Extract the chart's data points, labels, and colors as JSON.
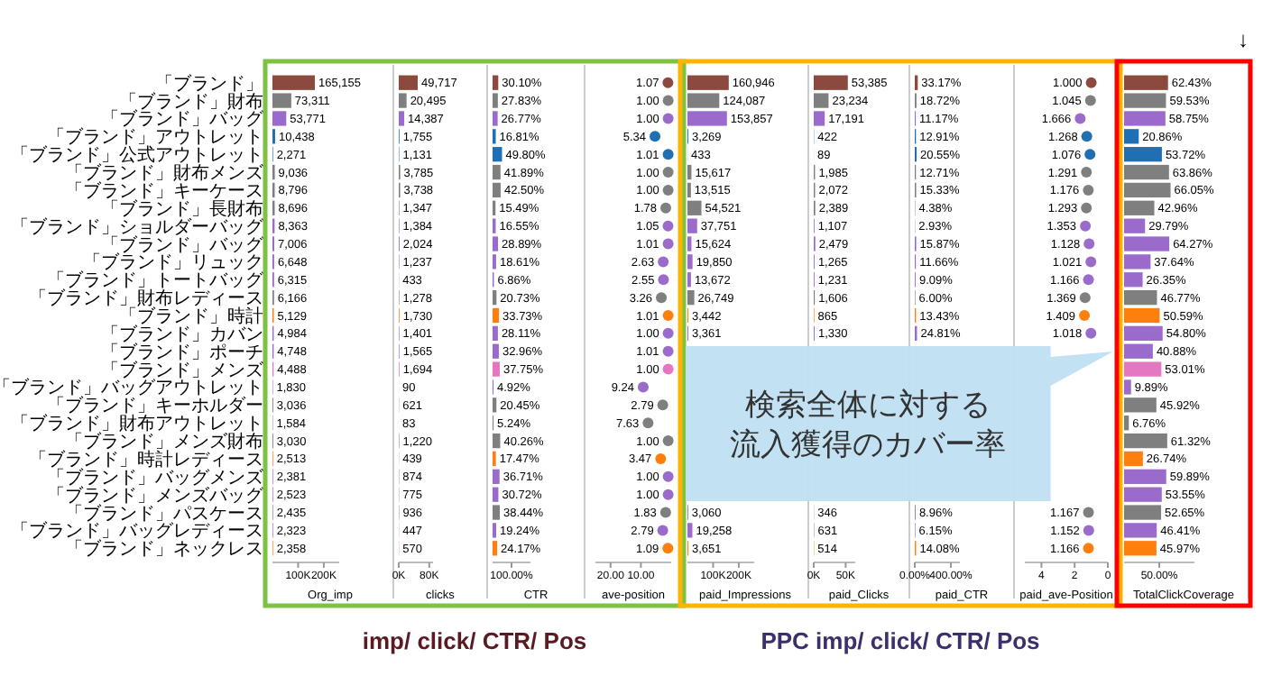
{
  "chart_data": [
    {
      "type": "bar",
      "orientation": "horizontal",
      "xlabel": "Org_imp",
      "categories": [
        "「ブランド」",
        "「ブランド」財布",
        "「ブランド」バッグ",
        "「ブランド」アウトレット",
        "「ブランド」公式アウトレット",
        "「ブランド」財布メンズ",
        "「ブランド」キーケース",
        "「ブランド」長財布",
        "「ブランド」ショルダーバッグ",
        "「ブランド」バッグ",
        "「ブランド」リュック",
        "「ブランド」トートバッグ",
        "「ブランド」財布レディース",
        "「ブランド」時計",
        "「ブランド」カバン",
        "「ブランド」ポーチ",
        "「ブランド」メンズ",
        "「ブランド」バッグアウトレット",
        "「ブランド」キーホルダー",
        "「ブランド」財布アウトレット",
        "「ブランド」メンズ財布",
        "「ブランド」時計レディース",
        "「ブランド」バッグメンズ",
        "「ブランド」メンズバッグ",
        "「ブランド」パスケース",
        "「ブランド」バッグレディース",
        "「ブランド」ネックレス"
      ],
      "values": [
        165155,
        73311,
        53771,
        10438,
        2271,
        9036,
        8796,
        8696,
        8363,
        7006,
        6648,
        6315,
        6166,
        5129,
        4984,
        4748,
        4488,
        1830,
        3036,
        1584,
        3030,
        2513,
        2381,
        2523,
        2435,
        2323,
        2358
      ],
      "value_labels": [
        "165,155",
        "73,311",
        "53,771",
        "10,438",
        "2,271",
        "9,036",
        "8,796",
        "8,696",
        "8,363",
        "7,006",
        "6,648",
        "6,315",
        "6,166",
        "5,129",
        "4,984",
        "4,748",
        "4,488",
        "1,830",
        "3,036",
        "1,584",
        "3,030",
        "2,513",
        "2,381",
        "2,523",
        "2,435",
        "2,323",
        "2,358"
      ],
      "colors": [
        "#8c4a3f",
        "#7f7f7f",
        "#9b6bcc",
        "#1f6fb4",
        "#1f6fb4",
        "#7f7f7f",
        "#7f7f7f",
        "#7f7f7f",
        "#9b6bcc",
        "#9b6bcc",
        "#9b6bcc",
        "#9b6bcc",
        "#7f7f7f",
        "#ff7f0e",
        "#9b6bcc",
        "#9b6bcc",
        "#e377c2",
        "#9b6bcc",
        "#7f7f7f",
        "#7f7f7f",
        "#7f7f7f",
        "#ff7f0e",
        "#9b6bcc",
        "#9b6bcc",
        "#7f7f7f",
        "#9b6bcc",
        "#ff7f0e"
      ],
      "xlim": [
        0,
        260000
      ],
      "xticks": [
        {
          "value": 100000,
          "label": "100K"
        },
        {
          "value": 200000,
          "label": "200K"
        }
      ],
      "annotations": [
        "imp/ click/ CTR/ Pos"
      ]
    },
    {
      "type": "bar",
      "orientation": "horizontal",
      "xlabel": "clicks",
      "tick_labels": "x",
      "values": [
        49717,
        20495,
        14387,
        1755,
        1131,
        3785,
        3738,
        1347,
        1384,
        2024,
        1237,
        433,
        1278,
        1730,
        1401,
        1565,
        1694,
        90,
        621,
        83,
        1220,
        439,
        874,
        775,
        936,
        447,
        570
      ],
      "value_labels": [
        "49,717",
        "20,495",
        "14,387",
        "1,755",
        "1,131",
        "3,785",
        "3,738",
        "1,347",
        "1,384",
        "2,024",
        "1,237",
        "433",
        "1,278",
        "1,730",
        "1,401",
        "1,565",
        "1,694",
        "90",
        "621",
        "83",
        "1,220",
        "439",
        "874",
        "775",
        "936",
        "447",
        "570"
      ],
      "colors": [
        "#8c4a3f",
        "#7f7f7f",
        "#9b6bcc",
        "#1f6fb4",
        "#1f6fb4",
        "#7f7f7f",
        "#7f7f7f",
        "#7f7f7f",
        "#9b6bcc",
        "#9b6bcc",
        "#9b6bcc",
        "#9b6bcc",
        "#7f7f7f",
        "#ff7f0e",
        "#9b6bcc",
        "#9b6bcc",
        "#e377c2",
        "#9b6bcc",
        "#7f7f7f",
        "#7f7f7f",
        "#7f7f7f",
        "#ff7f0e",
        "#9b6bcc",
        "#9b6bcc",
        "#7f7f7f",
        "#9b6bcc",
        "#ff7f0e"
      ],
      "xlim": [
        0,
        90000
      ],
      "xticks": [
        {
          "value": 0,
          "label": "0K"
        },
        {
          "value": 80000,
          "label": "80K"
        }
      ]
    },
    {
      "type": "bar",
      "orientation": "horizontal",
      "xlabel": "CTR",
      "tick_labels": "x",
      "values": [
        30.1,
        27.83,
        26.77,
        16.81,
        49.8,
        41.89,
        42.5,
        15.49,
        16.55,
        28.89,
        18.61,
        6.86,
        20.73,
        33.73,
        28.11,
        32.96,
        37.75,
        4.92,
        20.45,
        5.24,
        40.26,
        17.47,
        36.71,
        30.72,
        38.44,
        19.24,
        24.17
      ],
      "value_labels": [
        "30.10%",
        "27.83%",
        "26.77%",
        "16.81%",
        "49.80%",
        "41.89%",
        "42.50%",
        "15.49%",
        "16.55%",
        "28.89%",
        "18.61%",
        "6.86%",
        "20.73%",
        "33.73%",
        "28.11%",
        "32.96%",
        "37.75%",
        "4.92%",
        "20.45%",
        "5.24%",
        "40.26%",
        "17.47%",
        "36.71%",
        "30.72%",
        "38.44%",
        "19.24%",
        "24.17%"
      ],
      "colors": [
        "#8c4a3f",
        "#7f7f7f",
        "#9b6bcc",
        "#1f6fb4",
        "#1f6fb4",
        "#7f7f7f",
        "#7f7f7f",
        "#7f7f7f",
        "#9b6bcc",
        "#9b6bcc",
        "#9b6bcc",
        "#9b6bcc",
        "#7f7f7f",
        "#ff7f0e",
        "#9b6bcc",
        "#9b6bcc",
        "#e377c2",
        "#9b6bcc",
        "#7f7f7f",
        "#7f7f7f",
        "#7f7f7f",
        "#ff7f0e",
        "#9b6bcc",
        "#9b6bcc",
        "#7f7f7f",
        "#9b6bcc",
        "#ff7f0e"
      ],
      "xlim": [
        0,
        200
      ],
      "xticks": [
        {
          "value": 100,
          "label": "100.00%"
        }
      ]
    },
    {
      "type": "scatter",
      "orientation": "horizontal",
      "marker": "circle",
      "xlabel": "ave-position",
      "tick_labels": "x",
      "values": [
        1.07,
        1.0,
        1.0,
        5.34,
        1.01,
        1.0,
        1.0,
        1.78,
        1.05,
        1.01,
        2.63,
        2.55,
        3.26,
        1.01,
        1.0,
        1.01,
        1.0,
        9.24,
        2.79,
        7.63,
        1.0,
        3.47,
        1.0,
        1.0,
        1.83,
        2.79,
        1.09
      ],
      "value_labels": [
        "1.07",
        "1.00",
        "1.00",
        "5.34",
        "1.01",
        "1.00",
        "1.00",
        "1.78",
        "1.05",
        "1.01",
        "2.63",
        "2.55",
        "3.26",
        "1.01",
        "1.00",
        "1.01",
        "1.00",
        "9.24",
        "2.79",
        "7.63",
        "1.00",
        "3.47",
        "1.00",
        "1.00",
        "1.83",
        "2.79",
        "1.09"
      ],
      "colors": [
        "#8c4a3f",
        "#7f7f7f",
        "#9b6bcc",
        "#1f6fb4",
        "#1f6fb4",
        "#7f7f7f",
        "#7f7f7f",
        "#7f7f7f",
        "#9b6bcc",
        "#9b6bcc",
        "#9b6bcc",
        "#9b6bcc",
        "#7f7f7f",
        "#ff7f0e",
        "#9b6bcc",
        "#9b6bcc",
        "#e377c2",
        "#9b6bcc",
        "#7f7f7f",
        "#7f7f7f",
        "#7f7f7f",
        "#ff7f0e",
        "#9b6bcc",
        "#9b6bcc",
        "#7f7f7f",
        "#9b6bcc",
        "#ff7f0e"
      ],
      "xlim": [
        25,
        0
      ],
      "xticks": [
        {
          "value": 20,
          "label": "20.00"
        },
        {
          "value": 10,
          "label": "10.00"
        }
      ]
    },
    {
      "type": "bar",
      "orientation": "horizontal",
      "xlabel": "paid_Impressions",
      "tick_labels": "x",
      "values": [
        160946,
        124087,
        153857,
        3269,
        433,
        15617,
        13515,
        54521,
        37751,
        15624,
        19850,
        13672,
        26749,
        3442,
        3361,
        null,
        null,
        null,
        null,
        null,
        null,
        null,
        null,
        null,
        3060,
        19258,
        3651
      ],
      "value_labels": [
        "160,946",
        "124,087",
        "153,857",
        "3,269",
        "433",
        "15,617",
        "13,515",
        "54,521",
        "37,751",
        "15,624",
        "19,850",
        "13,672",
        "26,749",
        "3,442",
        "3,361",
        null,
        null,
        null,
        null,
        null,
        null,
        null,
        null,
        null,
        "3,060",
        "19,258",
        "3,651"
      ],
      "colors": [
        "#8c4a3f",
        "#7f7f7f",
        "#9b6bcc",
        "#1f6fb4",
        "#1f6fb4",
        "#7f7f7f",
        "#7f7f7f",
        "#7f7f7f",
        "#9b6bcc",
        "#9b6bcc",
        "#9b6bcc",
        "#9b6bcc",
        "#7f7f7f",
        "#ff7f0e",
        "#9b6bcc",
        null,
        null,
        null,
        null,
        null,
        null,
        null,
        null,
        null,
        "#7f7f7f",
        "#9b6bcc",
        "#ff7f0e"
      ],
      "xlim": [
        0,
        260000
      ],
      "xticks": [
        {
          "value": 100000,
          "label": "100K"
        },
        {
          "value": 200000,
          "label": "200K"
        }
      ],
      "annotations": [
        "PPC imp/ click/ CTR/ Pos"
      ]
    },
    {
      "type": "bar",
      "orientation": "horizontal",
      "xlabel": "paid_Clicks",
      "tick_labels": "x",
      "values": [
        53385,
        23234,
        17191,
        422,
        89,
        1985,
        2072,
        2389,
        1107,
        2479,
        1265,
        1231,
        1606,
        865,
        1330,
        null,
        null,
        null,
        null,
        null,
        null,
        null,
        null,
        null,
        346,
        631,
        514
      ],
      "value_labels": [
        "53,385",
        "23,234",
        "17,191",
        "422",
        "89",
        "1,985",
        "2,072",
        "2,389",
        "1,107",
        "2,479",
        "1,265",
        "1,231",
        "1,606",
        "865",
        "1,330",
        null,
        null,
        null,
        null,
        null,
        null,
        null,
        null,
        null,
        "346",
        "631",
        "514"
      ],
      "colors": [
        "#8c4a3f",
        "#7f7f7f",
        "#9b6bcc",
        "#1f6fb4",
        "#1f6fb4",
        "#7f7f7f",
        "#7f7f7f",
        "#7f7f7f",
        "#9b6bcc",
        "#9b6bcc",
        "#9b6bcc",
        "#9b6bcc",
        "#7f7f7f",
        "#ff7f0e",
        "#9b6bcc",
        null,
        null,
        null,
        null,
        null,
        null,
        null,
        null,
        null,
        "#7f7f7f",
        "#9b6bcc",
        "#ff7f0e"
      ],
      "xlim": [
        0,
        65000
      ],
      "xticks": [
        {
          "value": 0,
          "label": "0K"
        },
        {
          "value": 50000,
          "label": "50K"
        }
      ]
    },
    {
      "type": "bar",
      "orientation": "horizontal",
      "xlabel": "paid_CTR",
      "tick_labels": "x",
      "values": [
        33.17,
        18.72,
        11.17,
        12.91,
        20.55,
        12.71,
        15.33,
        4.38,
        2.93,
        15.87,
        11.66,
        9.09,
        6.0,
        13.43,
        24.81,
        null,
        null,
        null,
        null,
        null,
        null,
        null,
        null,
        null,
        8.96,
        6.15,
        14.08
      ],
      "value_labels": [
        "33.17%",
        "18.72%",
        "11.17%",
        "12.91%",
        "20.55%",
        "12.71%",
        "15.33%",
        "4.38%",
        "2.93%",
        "15.87%",
        "11.66%",
        "9.09%",
        "6.00%",
        "13.43%",
        "24.81%",
        null,
        null,
        null,
        null,
        null,
        null,
        null,
        null,
        null,
        "8.96%",
        "6.15%",
        "14.08%"
      ],
      "colors": [
        "#8c4a3f",
        "#7f7f7f",
        "#9b6bcc",
        "#1f6fb4",
        "#1f6fb4",
        "#7f7f7f",
        "#7f7f7f",
        "#7f7f7f",
        "#9b6bcc",
        "#9b6bcc",
        "#9b6bcc",
        "#9b6bcc",
        "#7f7f7f",
        "#ff7f0e",
        "#9b6bcc",
        null,
        null,
        null,
        null,
        null,
        null,
        null,
        null,
        null,
        "#7f7f7f",
        "#9b6bcc",
        "#ff7f0e"
      ],
      "xlim": [
        0,
        500
      ],
      "xticks": [
        {
          "value": 0,
          "label": "0.00%"
        },
        {
          "value": 400,
          "label": "400.00%"
        }
      ]
    },
    {
      "type": "scatter",
      "orientation": "horizontal",
      "marker": "circle",
      "xlabel": "paid_ave-Position",
      "tick_labels": "x",
      "values": [
        1.0,
        1.045,
        1.666,
        1.268,
        1.076,
        1.291,
        1.176,
        1.293,
        1.353,
        1.128,
        1.021,
        1.166,
        1.369,
        1.409,
        1.018,
        null,
        null,
        null,
        null,
        null,
        null,
        null,
        null,
        null,
        1.167,
        1.152,
        1.166
      ],
      "value_labels": [
        "1.000",
        "1.045",
        "1.666",
        "1.268",
        "1.076",
        "1.291",
        "1.176",
        "1.293",
        "1.353",
        "1.128",
        "1.021",
        "1.166",
        "1.369",
        "1.409",
        "1.018",
        null,
        null,
        null,
        null,
        null,
        null,
        null,
        null,
        null,
        "1.167",
        "1.152",
        "1.166"
      ],
      "colors": [
        "#8c4a3f",
        "#7f7f7f",
        "#9b6bcc",
        "#1f6fb4",
        "#1f6fb4",
        "#7f7f7f",
        "#7f7f7f",
        "#7f7f7f",
        "#9b6bcc",
        "#9b6bcc",
        "#9b6bcc",
        "#9b6bcc",
        "#7f7f7f",
        "#ff7f0e",
        "#9b6bcc",
        null,
        null,
        null,
        null,
        null,
        null,
        null,
        null,
        null,
        "#7f7f7f",
        "#9b6bcc",
        "#ff7f0e"
      ],
      "xlim": [
        5,
        0
      ],
      "xticks": [
        4,
        2,
        0
      ]
    },
    {
      "type": "bar",
      "orientation": "horizontal",
      "xlabel": "TotalClickCoverage",
      "tick_labels": "x",
      "values": [
        62.43,
        59.53,
        58.75,
        20.86,
        53.72,
        63.86,
        66.05,
        42.96,
        29.79,
        64.27,
        37.64,
        26.35,
        46.77,
        50.59,
        54.8,
        40.88,
        53.01,
        9.89,
        45.92,
        6.76,
        61.32,
        26.74,
        59.89,
        53.55,
        52.65,
        46.41,
        45.97
      ],
      "value_labels": [
        "62.43%",
        "59.53%",
        "58.75%",
        "20.86%",
        "53.72%",
        "63.86%",
        "66.05%",
        "42.96%",
        "29.79%",
        "64.27%",
        "37.64%",
        "26.35%",
        "46.77%",
        "50.59%",
        "54.80%",
        "40.88%",
        "53.01%",
        "9.89%",
        "45.92%",
        "6.76%",
        "61.32%",
        "26.74%",
        "59.89%",
        "53.55%",
        "52.65%",
        "46.41%",
        "45.97%"
      ],
      "colors": [
        "#8c4a3f",
        "#7f7f7f",
        "#9b6bcc",
        "#1f6fb4",
        "#1f6fb4",
        "#7f7f7f",
        "#7f7f7f",
        "#7f7f7f",
        "#9b6bcc",
        "#9b6bcc",
        "#9b6bcc",
        "#9b6bcc",
        "#7f7f7f",
        "#ff7f0e",
        "#9b6bcc",
        "#9b6bcc",
        "#e377c2",
        "#9b6bcc",
        "#7f7f7f",
        "#7f7f7f",
        "#7f7f7f",
        "#ff7f0e",
        "#9b6bcc",
        "#9b6bcc",
        "#7f7f7f",
        "#9b6bcc",
        "#ff7f0e"
      ],
      "xlim": [
        0,
        100
      ],
      "xticks": [
        {
          "value": 50,
          "label": "50.00%"
        }
      ],
      "annotations": [
        "↓",
        "検索全体に対する",
        "流入獲得のカバー率"
      ]
    }
  ]
}
